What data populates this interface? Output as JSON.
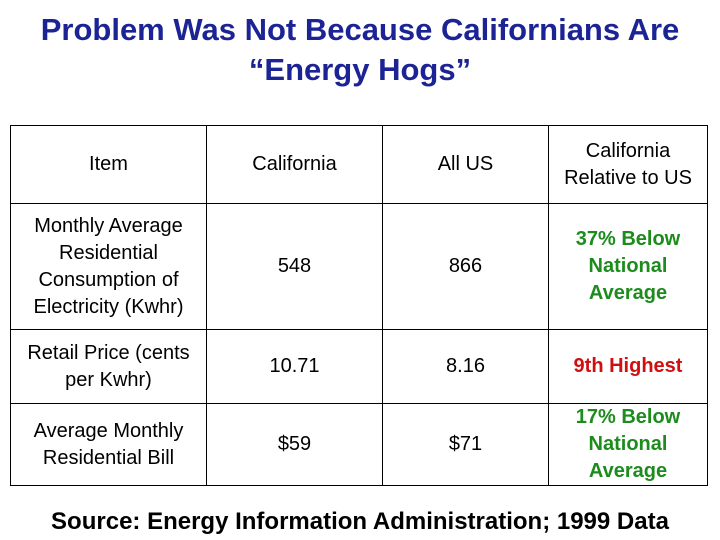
{
  "title": {
    "line1": "Problem Was Not Because Californians Are",
    "line2": "“Energy Hogs”"
  },
  "table": {
    "headers": [
      "Item",
      "California",
      "All US",
      "California Relative to US"
    ],
    "rows": [
      {
        "item": "Monthly Average Residential Consumption of Electricity (Kwhr)",
        "california": "548",
        "all_us": "866",
        "relative": "37% Below National Average",
        "relative_color": "#1c8c1c"
      },
      {
        "item": "Retail Price (cents per Kwhr)",
        "california": "10.71",
        "all_us": "8.16",
        "relative": "9th Highest",
        "relative_color": "#d01010"
      },
      {
        "item": "Average Monthly Residential Bill",
        "california": "$59",
        "all_us": "$71",
        "relative": "17% Below National Average",
        "relative_color": "#1c8c1c"
      }
    ]
  },
  "source": "Source:  Energy Information Administration;  1999 Data"
}
